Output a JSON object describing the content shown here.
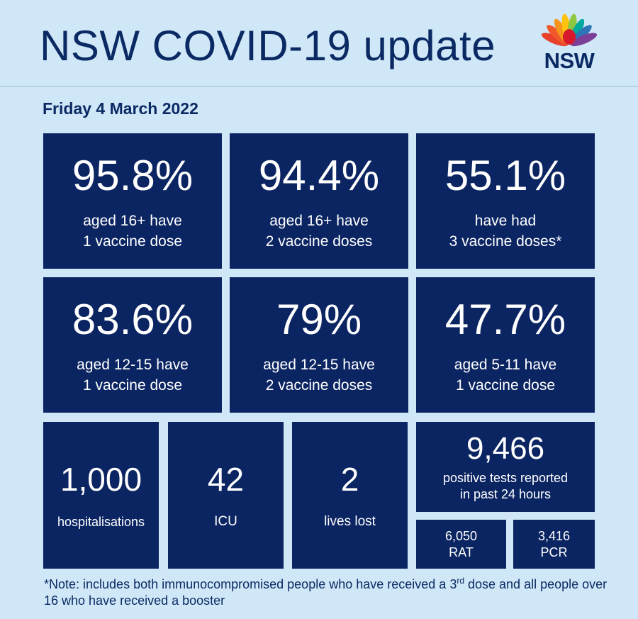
{
  "header": {
    "title": "NSW COVID-19 update",
    "logo_text": "NSW"
  },
  "date": "Friday 4 March 2022",
  "vaccination": [
    {
      "value": "95.8%",
      "desc": "aged 16+ have\n1 vaccine dose"
    },
    {
      "value": "94.4%",
      "desc": "aged 16+ have\n2 vaccine doses"
    },
    {
      "value": "55.1%",
      "desc": "have had\n3 vaccine doses*"
    },
    {
      "value": "83.6%",
      "desc": "aged 12-15 have\n1 vaccine dose"
    },
    {
      "value": "79%",
      "desc": "aged 12-15 have\n2 vaccine doses"
    },
    {
      "value": "47.7%",
      "desc": "aged 5-11 have\n1 vaccine dose"
    }
  ],
  "stats": {
    "hospitalisations": {
      "value": "1,000",
      "label": "hospitalisations"
    },
    "icu": {
      "value": "42",
      "label": "ICU"
    },
    "lives_lost": {
      "value": "2",
      "label": "lives lost"
    },
    "positive": {
      "value": "9,466",
      "desc": "positive tests reported\nin past 24 hours"
    },
    "rat": {
      "value": "6,050",
      "label": "RAT"
    },
    "pcr": {
      "value": "3,416",
      "label": "PCR"
    }
  },
  "note": {
    "part1": "*Note: includes both immunocompromised  people who have received a 3",
    "sup": "rd",
    "part2": " dose and all people over 16 who have received a booster"
  },
  "colors": {
    "tile": "#0b2562",
    "background": "#cfe7f7",
    "text_dark": "#0b2a63"
  }
}
